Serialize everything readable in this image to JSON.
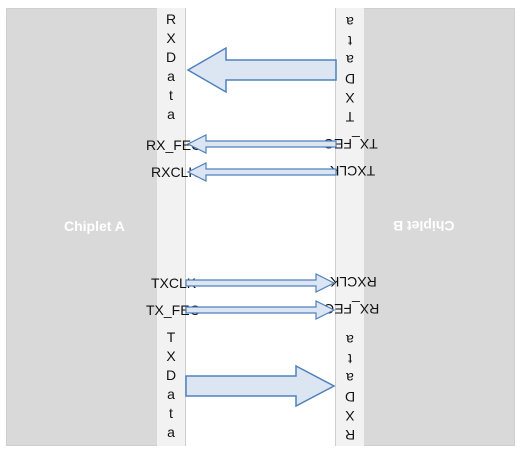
{
  "chiplets": {
    "a": {
      "label": "Chiplet A"
    },
    "b": {
      "label": "Chiplet B"
    }
  },
  "signals": {
    "rx_data": "RXData",
    "rx_fec": "RX_FEC",
    "rxclk": "RXCLK",
    "txclk": "TXCLK",
    "tx_fec": "TX_FEC",
    "tx_data": "TXData"
  },
  "b_signals": {
    "tx_data": "TXData",
    "tx_fec": "TX_FEC",
    "txclk": "TXCLK",
    "rxclk": "RXCLK",
    "rx_fec": "RX_FEC",
    "rx_data": "RXData"
  },
  "colors": {
    "chip": "#d9d9d9",
    "column": "#f2f2f2",
    "arrow_fill": "#dce6f2",
    "arrow_stroke": "#4f81bd"
  }
}
